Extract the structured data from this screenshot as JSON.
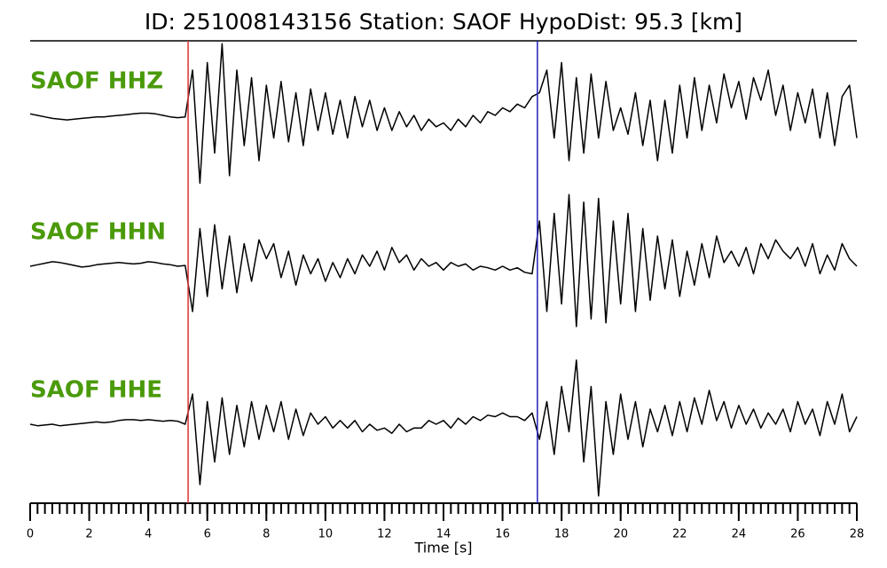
{
  "chart_data": {
    "type": "line",
    "title": "ID: 251008143156   Station: SAOF   HypoDist:    95.3 [km]",
    "xlabel": "Time [s]",
    "xlim": [
      0,
      28
    ],
    "xticks": [
      0,
      2,
      4,
      6,
      8,
      10,
      12,
      14,
      16,
      18,
      20,
      22,
      24,
      26,
      28
    ],
    "xminorticks": [
      0,
      0.25,
      0.5,
      0.75,
      1,
      1.25,
      1.5,
      1.75,
      2,
      2.25,
      2.5,
      2.75,
      3,
      3.25,
      3.5,
      3.75,
      4,
      4.25,
      4.5,
      4.75,
      5,
      5.25,
      5.5,
      5.75,
      6,
      6.25,
      6.5,
      6.75,
      7,
      7.25,
      7.5,
      7.75,
      8,
      8.25,
      8.5,
      8.75,
      9,
      9.25,
      9.5,
      9.75,
      10,
      10.25,
      10.5,
      10.75,
      11,
      11.25,
      11.5,
      11.75,
      12,
      12.25,
      12.5,
      12.75,
      13,
      13.25,
      13.5,
      13.75,
      14,
      14.25,
      14.5,
      14.75,
      15,
      15.25,
      15.5,
      15.75,
      16,
      16.25,
      16.5,
      16.75,
      17,
      17.25,
      17.5,
      17.75,
      18,
      18.25,
      18.5,
      18.75,
      19,
      19.25,
      19.5,
      19.75,
      20,
      20.25,
      20.5,
      20.75,
      21,
      21.25,
      21.5,
      21.75,
      22,
      22.25,
      22.5,
      22.75,
      23,
      23.25,
      23.5,
      23.75,
      24,
      24.25,
      24.5,
      24.75,
      25,
      25.25,
      25.5,
      25.75,
      26,
      26.25,
      26.5,
      26.75,
      27,
      27.25,
      27.5,
      27.75,
      28
    ],
    "ylim": [
      -1,
      1
    ],
    "label_color": "#4a9a0a",
    "picks": [
      {
        "x": 5.35,
        "color": "#e03030"
      },
      {
        "x": 17.18,
        "color": "#2020c0"
      }
    ],
    "x": [
      0,
      0.25,
      0.5,
      0.75,
      1,
      1.25,
      1.5,
      1.75,
      2,
      2.25,
      2.5,
      2.75,
      3,
      3.25,
      3.5,
      3.75,
      4,
      4.25,
      4.5,
      4.75,
      5,
      5.25,
      5.5,
      5.75,
      6,
      6.25,
      6.5,
      6.75,
      7,
      7.25,
      7.5,
      7.75,
      8,
      8.25,
      8.5,
      8.75,
      9,
      9.25,
      9.5,
      9.75,
      10,
      10.25,
      10.5,
      10.75,
      11,
      11.25,
      11.5,
      11.75,
      12,
      12.25,
      12.5,
      12.75,
      13,
      13.25,
      13.5,
      13.75,
      14,
      14.25,
      14.5,
      14.75,
      15,
      15.25,
      15.5,
      15.75,
      16,
      16.25,
      16.5,
      16.75,
      17,
      17.25,
      17.5,
      17.75,
      18,
      18.25,
      18.5,
      18.75,
      19,
      19.25,
      19.5,
      19.75,
      20,
      20.25,
      20.5,
      20.75,
      21,
      21.25,
      21.5,
      21.75,
      22,
      22.25,
      22.5,
      22.75,
      23,
      23.25,
      23.5,
      23.75,
      24,
      24.25,
      24.5,
      24.75,
      25,
      25.25,
      25.5,
      25.75,
      26,
      26.25,
      26.5,
      26.75,
      27,
      27.25,
      27.5,
      27.75,
      28
    ],
    "series": [
      {
        "name": "SAOF HHZ",
        "color": "#000000",
        "values": [
          0.02,
          0.0,
          -0.02,
          -0.04,
          -0.05,
          -0.06,
          -0.05,
          -0.04,
          -0.03,
          -0.02,
          -0.02,
          -0.01,
          0.0,
          0.01,
          0.02,
          0.03,
          0.03,
          0.02,
          0.0,
          -0.02,
          -0.03,
          -0.02,
          0.6,
          -0.9,
          0.7,
          -0.5,
          0.95,
          -0.8,
          0.6,
          -0.4,
          0.5,
          -0.6,
          0.4,
          -0.3,
          0.45,
          -0.35,
          0.3,
          -0.4,
          0.35,
          -0.2,
          0.3,
          -0.25,
          0.2,
          -0.3,
          0.25,
          -0.15,
          0.2,
          -0.2,
          0.1,
          -0.2,
          0.05,
          -0.15,
          0.0,
          -0.2,
          -0.05,
          -0.15,
          -0.1,
          -0.2,
          -0.05,
          -0.15,
          0.0,
          -0.1,
          0.05,
          0.0,
          0.1,
          0.05,
          0.15,
          0.1,
          0.25,
          0.3,
          0.6,
          -0.3,
          0.7,
          -0.6,
          0.5,
          -0.5,
          0.55,
          -0.3,
          0.45,
          -0.2,
          0.1,
          -0.25,
          0.3,
          -0.4,
          0.2,
          -0.6,
          0.2,
          -0.5,
          0.4,
          -0.3,
          0.5,
          -0.2,
          0.4,
          -0.1,
          0.55,
          0.1,
          0.45,
          -0.05,
          0.5,
          0.2,
          0.6,
          0.0,
          0.4,
          -0.2,
          0.3,
          -0.1,
          0.35,
          -0.3,
          0.3,
          -0.4,
          0.25,
          0.4,
          -0.3
        ]
      },
      {
        "name": "SAOF HHN",
        "color": "#000000",
        "values": [
          0.0,
          0.02,
          0.04,
          0.06,
          0.05,
          0.03,
          0.01,
          -0.01,
          0.0,
          0.02,
          0.03,
          0.04,
          0.05,
          0.04,
          0.03,
          0.04,
          0.06,
          0.05,
          0.03,
          0.02,
          0.0,
          0.01,
          -0.6,
          0.5,
          -0.4,
          0.55,
          -0.3,
          0.4,
          -0.35,
          0.3,
          -0.2,
          0.35,
          0.1,
          0.3,
          -0.15,
          0.2,
          -0.25,
          0.15,
          -0.1,
          0.1,
          -0.2,
          0.05,
          -0.15,
          0.1,
          -0.1,
          0.15,
          0.0,
          0.2,
          -0.05,
          0.25,
          0.05,
          0.15,
          -0.05,
          0.1,
          0.0,
          0.05,
          -0.05,
          0.05,
          0.0,
          0.03,
          -0.05,
          0.0,
          -0.02,
          -0.05,
          0.0,
          -0.05,
          -0.02,
          -0.08,
          -0.1,
          0.6,
          -0.6,
          0.7,
          -0.5,
          0.95,
          -0.8,
          0.85,
          -0.7,
          0.9,
          -0.75,
          0.6,
          -0.5,
          0.7,
          -0.6,
          0.5,
          -0.45,
          0.4,
          -0.3,
          0.35,
          -0.4,
          0.2,
          -0.25,
          0.3,
          -0.15,
          0.4,
          0.05,
          0.2,
          0.0,
          0.25,
          -0.1,
          0.3,
          0.1,
          0.35,
          0.2,
          0.1,
          0.25,
          0.0,
          0.3,
          -0.1,
          0.15,
          -0.05,
          0.3,
          0.1,
          0.0
        ]
      },
      {
        "name": "SAOF HHE",
        "color": "#000000",
        "values": [
          0.0,
          -0.02,
          -0.01,
          0.0,
          -0.02,
          -0.01,
          0.0,
          0.01,
          0.02,
          0.03,
          0.02,
          0.03,
          0.05,
          0.06,
          0.06,
          0.05,
          0.06,
          0.05,
          0.04,
          0.05,
          0.04,
          0.0,
          0.4,
          -0.8,
          0.3,
          -0.5,
          0.35,
          -0.4,
          0.25,
          -0.3,
          0.3,
          -0.2,
          0.25,
          -0.1,
          0.3,
          -0.2,
          0.2,
          -0.15,
          0.15,
          0.0,
          0.1,
          -0.05,
          0.05,
          -0.05,
          0.05,
          -0.1,
          0.0,
          -0.08,
          -0.05,
          -0.12,
          0.0,
          -0.1,
          -0.05,
          -0.05,
          0.05,
          0.0,
          0.05,
          -0.05,
          0.08,
          0.0,
          0.1,
          0.05,
          0.12,
          0.1,
          0.15,
          0.1,
          0.1,
          0.05,
          0.15,
          -0.2,
          0.3,
          -0.4,
          0.5,
          -0.1,
          0.85,
          -0.5,
          0.5,
          -0.95,
          0.3,
          -0.4,
          0.4,
          -0.2,
          0.3,
          -0.3,
          0.2,
          -0.1,
          0.25,
          -0.15,
          0.3,
          -0.1,
          0.35,
          0.0,
          0.45,
          0.05,
          0.3,
          -0.05,
          0.25,
          0.0,
          0.2,
          -0.05,
          0.15,
          0.0,
          0.2,
          -0.1,
          0.3,
          0.0,
          0.2,
          -0.15,
          0.3,
          0.0,
          0.4,
          -0.1,
          0.1
        ]
      }
    ]
  }
}
